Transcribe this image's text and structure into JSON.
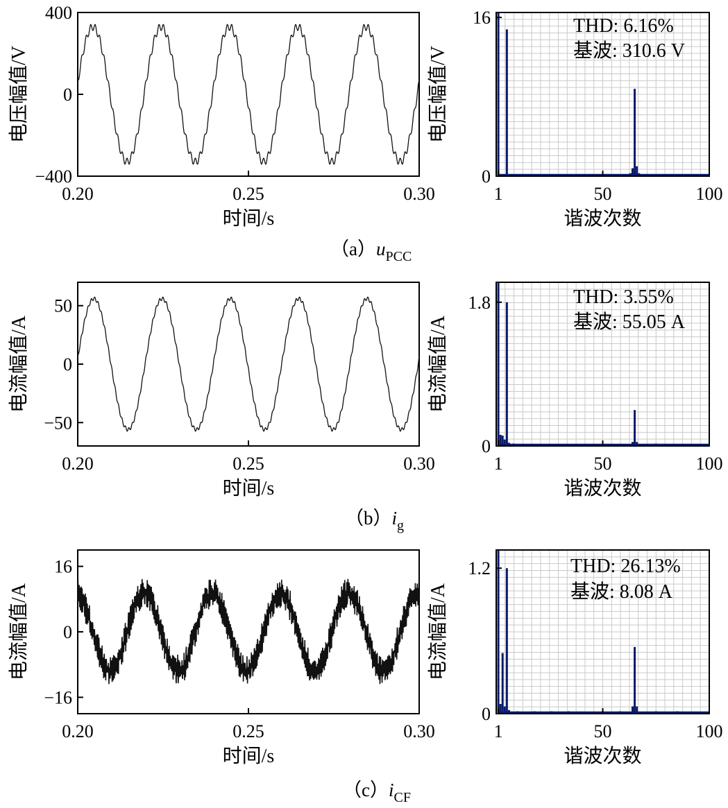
{
  "chart_data": [
    {
      "panel": "a",
      "type": "line",
      "caption": "（a）",
      "caption_var": "u",
      "caption_sub": "PCC",
      "left": {
        "xlabel": "时间/s",
        "ylabel": "电压幅值/V",
        "xlim": [
          0.2,
          0.3
        ],
        "ylim": [
          -400,
          400
        ],
        "xticks": [
          "0.20",
          "0.25",
          "0.30"
        ],
        "yticks": [
          "400",
          "0",
          "−400"
        ],
        "ytick_values": [
          400,
          0,
          -400
        ],
        "series": {
          "amplitude": 330,
          "freq_hz": 50,
          "phase_deg": 10,
          "ripple_amp": 18,
          "ripple_cycles_per_period": 15,
          "noise": 0
        }
      },
      "right": {
        "type": "bar",
        "xlabel": "谐波次数",
        "ylabel": "电压幅值/V",
        "xlim": [
          0,
          100
        ],
        "ylim": [
          0,
          16.5
        ],
        "xticks": [
          "1",
          "50",
          "100"
        ],
        "xtick_values": [
          1,
          50,
          100
        ],
        "yticks": [
          "16",
          "0"
        ],
        "ytick_values": [
          16,
          0
        ],
        "thd": "THD: 6.16%",
        "fundamental": "基波: 310.6 V",
        "bars": [
          {
            "order": 1,
            "value": 16.5
          },
          {
            "order": 5,
            "value": 14.8
          },
          {
            "order": 12,
            "value": 0.1
          },
          {
            "order": 19,
            "value": 0.12
          },
          {
            "order": 28,
            "value": 0.1
          },
          {
            "order": 38,
            "value": 0.08
          },
          {
            "order": 47,
            "value": 0.1
          },
          {
            "order": 55,
            "value": 0.1
          },
          {
            "order": 63,
            "value": 0.3
          },
          {
            "order": 64,
            "value": 0.8
          },
          {
            "order": 65,
            "value": 8.8
          },
          {
            "order": 66,
            "value": 1.0
          },
          {
            "order": 67,
            "value": 0.3
          },
          {
            "order": 75,
            "value": 0.15
          },
          {
            "order": 85,
            "value": 0.1
          },
          {
            "order": 95,
            "value": 0.08
          }
        ]
      }
    },
    {
      "panel": "b",
      "type": "line",
      "caption": "（b）",
      "caption_var": "i",
      "caption_sub": "g",
      "left": {
        "xlabel": "时间/s",
        "ylabel": "电流幅值/A",
        "xlim": [
          0.2,
          0.3
        ],
        "ylim": [
          -70,
          70
        ],
        "xticks": [
          "0.20",
          "0.25",
          "0.30"
        ],
        "yticks": [
          "50",
          "0",
          "−50"
        ],
        "ytick_values": [
          50,
          0,
          -50
        ],
        "series": {
          "amplitude": 56,
          "freq_hz": 50,
          "phase_deg": 5,
          "ripple_amp": 1.5,
          "ripple_cycles_per_period": 20,
          "noise": 0
        }
      },
      "right": {
        "type": "bar",
        "xlabel": "谐波次数",
        "ylabel": "电流幅值/A",
        "xlim": [
          0,
          100
        ],
        "ylim": [
          0,
          2.05
        ],
        "xticks": [
          "1",
          "50",
          "100"
        ],
        "xtick_values": [
          1,
          50,
          100
        ],
        "yticks": [
          "1.8",
          "0"
        ],
        "ytick_values": [
          1.8,
          0
        ],
        "thd": "THD: 3.55%",
        "fundamental": "基波: 55.05 A",
        "bars": [
          {
            "order": 1,
            "value": 2.05
          },
          {
            "order": 2,
            "value": 0.14
          },
          {
            "order": 3,
            "value": 0.13
          },
          {
            "order": 4,
            "value": 0.08
          },
          {
            "order": 5,
            "value": 1.8
          },
          {
            "order": 6,
            "value": 0.04
          },
          {
            "order": 8,
            "value": 0.03
          },
          {
            "order": 10,
            "value": 0.025
          },
          {
            "order": 14,
            "value": 0.02
          },
          {
            "order": 20,
            "value": 0.02
          },
          {
            "order": 28,
            "value": 0.02
          },
          {
            "order": 36,
            "value": 0.02
          },
          {
            "order": 44,
            "value": 0.015
          },
          {
            "order": 52,
            "value": 0.015
          },
          {
            "order": 64,
            "value": 0.05
          },
          {
            "order": 65,
            "value": 0.45
          },
          {
            "order": 66,
            "value": 0.05
          },
          {
            "order": 75,
            "value": 0.03
          },
          {
            "order": 85,
            "value": 0.02
          },
          {
            "order": 95,
            "value": 0.02
          }
        ]
      }
    },
    {
      "panel": "c",
      "type": "line",
      "caption": "（c）",
      "caption_var": "i",
      "caption_sub": "CF",
      "left": {
        "xlabel": "时间/s",
        "ylabel": "电流幅值/A",
        "xlim": [
          0.2,
          0.3
        ],
        "ylim": [
          -20,
          20
        ],
        "xticks": [
          "0.20",
          "0.25",
          "0.30"
        ],
        "yticks": [
          "16",
          "0",
          "−16"
        ],
        "ytick_values": [
          16,
          0,
          -16
        ],
        "series": {
          "amplitude": 9.5,
          "freq_hz": 50,
          "phase_deg": 100,
          "ripple_amp": 2.2,
          "ripple_cycles_per_period": 65,
          "noise": 0.8
        }
      },
      "right": {
        "type": "bar",
        "xlabel": "谐波次数",
        "ylabel": "电流幅值/A",
        "xlim": [
          0,
          100
        ],
        "ylim": [
          0,
          1.35
        ],
        "xticks": [
          "1",
          "50",
          "100"
        ],
        "xtick_values": [
          1,
          50,
          100
        ],
        "yticks": [
          "1.2",
          "0"
        ],
        "ytick_values": [
          1.2,
          0
        ],
        "thd": "THD: 26.13%",
        "fundamental": "基波: 8.08 A",
        "bars": [
          {
            "order": 1,
            "value": 1.35
          },
          {
            "order": 2,
            "value": 0.08
          },
          {
            "order": 3,
            "value": 0.5
          },
          {
            "order": 4,
            "value": 0.06
          },
          {
            "order": 5,
            "value": 1.2
          },
          {
            "order": 6,
            "value": 0.03
          },
          {
            "order": 10,
            "value": 0.02
          },
          {
            "order": 18,
            "value": 0.02
          },
          {
            "order": 26,
            "value": 0.02
          },
          {
            "order": 34,
            "value": 0.02
          },
          {
            "order": 42,
            "value": 0.015
          },
          {
            "order": 50,
            "value": 0.02
          },
          {
            "order": 58,
            "value": 0.02
          },
          {
            "order": 64,
            "value": 0.06
          },
          {
            "order": 65,
            "value": 0.55
          },
          {
            "order": 66,
            "value": 0.06
          },
          {
            "order": 75,
            "value": 0.02
          },
          {
            "order": 85,
            "value": 0.02
          },
          {
            "order": 95,
            "value": 0.015
          }
        ]
      }
    }
  ]
}
